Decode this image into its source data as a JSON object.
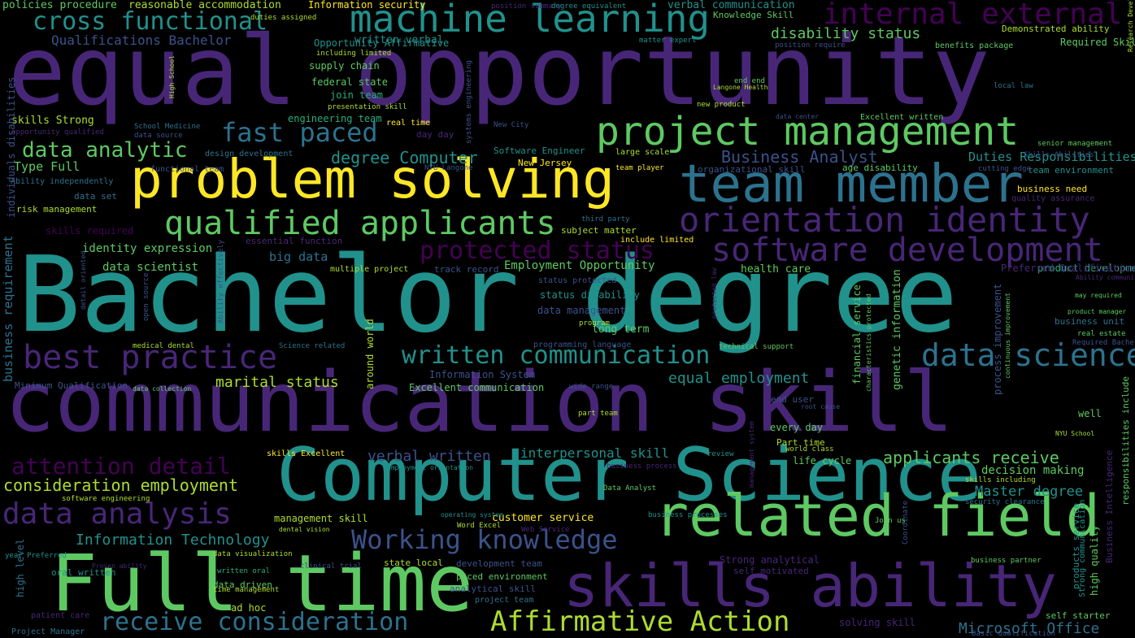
{
  "palette": {
    "background": "#000000",
    "p1": "#482677",
    "p2": "#3b528b",
    "p3": "#2c728e",
    "p4": "#21918c",
    "p5": "#28ae80",
    "p6": "#5ec962",
    "p7": "#addc30",
    "p8": "#fde725",
    "p0": "#440154"
  },
  "words": [
    "equal opportunity",
    "Bachelor degree",
    "communication skill",
    "Computer Science",
    "Full time",
    "problem solving",
    "team member",
    "skills ability",
    "related field",
    "machine learning",
    "project management",
    "orientation identity",
    "software development",
    "qualified applicants",
    "best practice",
    "data science",
    "internal external",
    "cross functional",
    "fast paced",
    "data analysis",
    "Working knowledge",
    "written communication",
    "Affirmative Action",
    "receive consideration",
    "attention detail",
    "protected status",
    "data analytic",
    "consideration employment",
    "applicants receive",
    "equal employment",
    "marital status",
    "Business Analyst",
    "degree Computer",
    "disability status",
    "Microsoft Office",
    "Information Technology",
    "Master degree",
    "verbal written",
    "interpersonal skill",
    "Duties Responsibilities",
    "Qualifications Bachelor",
    "data scientist",
    "identity expression",
    "big data",
    "Employment Opportunity",
    "Type Full",
    "decision making",
    "policies procedure",
    "reasonable accommodation",
    "Information security",
    "verbal communication",
    "health care",
    "product development",
    "customer service",
    "management skill",
    "long term",
    "life cycle",
    "every day",
    "end user",
    "Information System",
    "Excellent communication",
    "data management",
    "status disability",
    "written verbal",
    "Opportunity Affirmative",
    "federal state",
    "join team",
    "engineering team",
    "supply chain",
    "Software Engineer",
    "New Jersey",
    "risk management",
    "data set",
    "subject matter",
    "track record",
    "essential function",
    "skills Strong",
    "Preferred Qualification",
    "business need",
    "business unit",
    "security clearance",
    "development team",
    "state local",
    "analytical skill",
    "paced environment",
    "project team",
    "data driven",
    "ad hoc",
    "solving skill",
    "high level",
    "oral written",
    "patient care",
    "Project Manager",
    "year Preferred",
    "Minimum Qualification",
    "data collection",
    "medical dental",
    "Science related",
    "skills required",
    "Ability independently",
    "business requirement",
    "individuals disabilities",
    "around world",
    "genetic information",
    "financial service",
    "process improvement",
    "responsibilities include",
    "Business Intelligence",
    "high quality",
    "products service",
    "Strong communication",
    "real time",
    "day day",
    "large scale",
    "team player",
    "age disability",
    "team environment",
    "Required Skill",
    "Demonstrated ability",
    "Knowledge Skill",
    "position require",
    "benefits package",
    "local law",
    "end end",
    "new product",
    "data center",
    "Excellent written",
    "senior management",
    "Skills Abilities",
    "quality assurance",
    "Research Development",
    "well",
    "NYU School",
    "may required",
    "product manager",
    "real estate",
    "Required Bachelor",
    "Ability communicate",
    "Strong analytical",
    "self motivated",
    "business partner",
    "self starter",
    "Basic Qualification",
    "Coordinate",
    "Join us",
    "Data Analyst",
    "business process",
    "business processes",
    "Word Excel",
    "Web Service",
    "operating system",
    "dental vision",
    "Proven ability",
    "clinical trial",
    "written oral",
    "time management",
    "data visualization",
    "software engineering",
    "skills Excellent",
    "employment orientation",
    "world class",
    "part team",
    "Part time",
    "wide range",
    "review",
    "root cause",
    "skills including",
    "technical support",
    "program",
    "programming language",
    "multiple project",
    "include limited",
    "status protected",
    "third party",
    "including limited",
    "presentation skill",
    "position summary",
    "degree equivalent",
    "duties assigned",
    "matter expert",
    "School Medicine",
    "data source",
    "design development",
    "functional team",
    "NYU Langone",
    "New City",
    "organizational skill",
    "cutting edge",
    "Langone Health",
    "opportunity qualified",
    "High School",
    "systems engineering",
    "open source",
    "detail oriented",
    "Ability effectively",
    "protected law",
    "characteristics protected",
    "continuous improvement",
    "management system"
  ]
}
